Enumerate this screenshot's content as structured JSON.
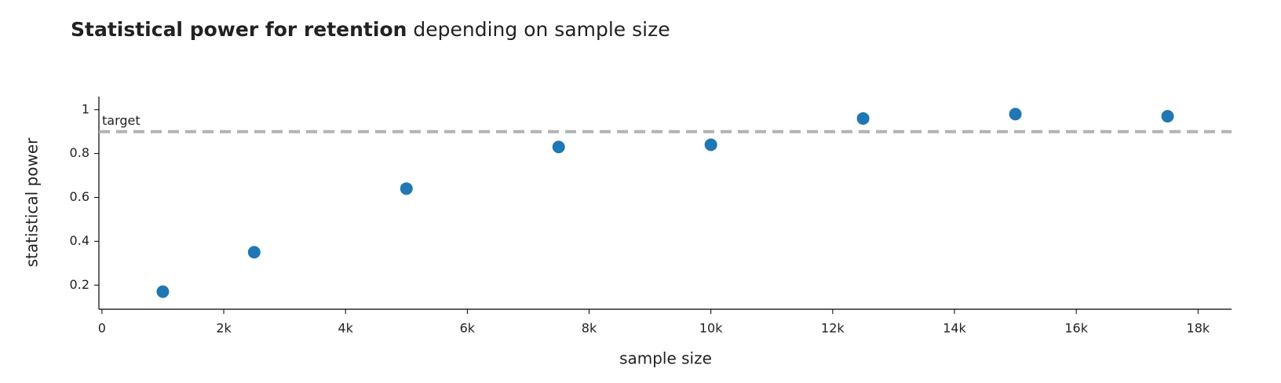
{
  "chart_data": {
    "type": "scatter",
    "title": "Statistical power for retention",
    "title_suffix": "depending on sample size",
    "x_label": "sample size",
    "y_label": "statistical power",
    "x": [
      1000,
      2500,
      5000,
      7500,
      10000,
      12500,
      15000,
      17500
    ],
    "series": [
      {
        "name": "statistical power",
        "color": "#1f77b4",
        "values": [
          0.17,
          0.35,
          0.64,
          0.83,
          0.84,
          0.96,
          0.98,
          0.97
        ]
      }
    ],
    "xlim": [
      -50,
      18550
    ],
    "ylim": [
      0.09,
      1.06
    ],
    "xticks": [
      0,
      {
        "value": 2000,
        "label": "2k"
      },
      {
        "value": 4000,
        "label": "4k"
      },
      {
        "value": 6000,
        "label": "6k"
      },
      {
        "value": 8000,
        "label": "8k"
      },
      {
        "value": 10000,
        "label": "10k"
      },
      {
        "value": 12000,
        "label": "12k"
      },
      {
        "value": 14000,
        "label": "14k"
      },
      {
        "value": 16000,
        "label": "16k"
      },
      {
        "value": 18000,
        "label": "18k"
      }
    ],
    "yticks": [
      0.2,
      0.4,
      0.6,
      0.8,
      1
    ],
    "target_line": {
      "value": 0.9,
      "label": "target",
      "color": "#b3b3b3"
    },
    "grid": false
  }
}
